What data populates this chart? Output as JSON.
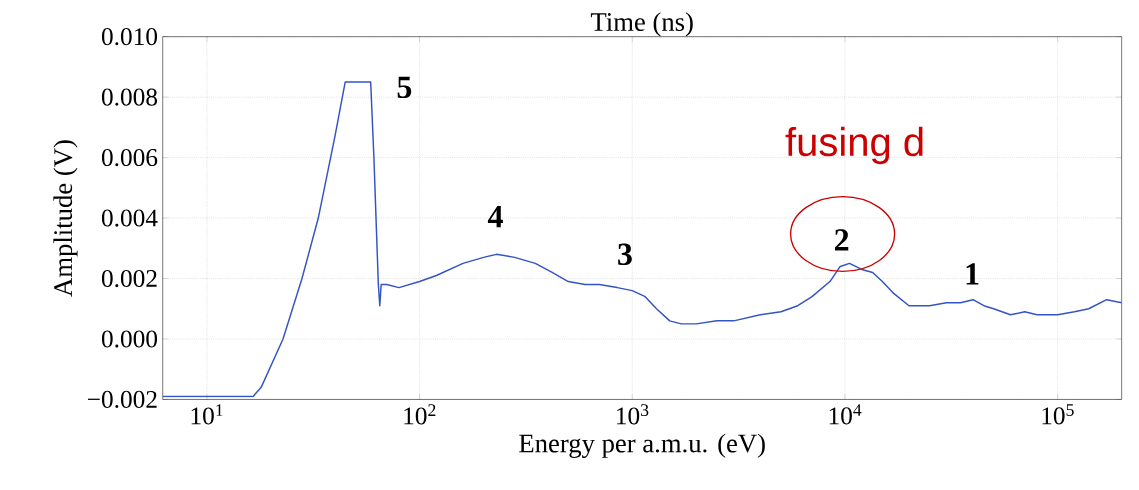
{
  "chart_data": {
    "type": "line",
    "xlabel": "Energy per a.m.u. (eV)",
    "ylabel": "Amplitude (V)",
    "x2label": "Time (ns)",
    "log": "x",
    "grid": true,
    "line_style": "solid",
    "marker": "none",
    "xlim": [
      6.2,
      200000
    ],
    "ylim": [
      -0.002,
      0.01
    ],
    "xticks": [
      {
        "value": 10,
        "label": "10$^{1}$"
      },
      {
        "value": 100,
        "label": "10$^{2}$"
      },
      {
        "value": 1000,
        "label": "10$^{3}$"
      },
      {
        "value": 10000,
        "label": "10$^{4}$"
      },
      {
        "value": 100000,
        "label": "10$^{5}$"
      }
    ],
    "yticks": [
      {
        "value": -0.002,
        "label": "−0.002"
      },
      {
        "value": 0.0,
        "label": "0.000"
      },
      {
        "value": 0.002,
        "label": "0.002"
      },
      {
        "value": 0.004,
        "label": "0.004"
      },
      {
        "value": 0.006,
        "label": "0.006"
      },
      {
        "value": 0.008,
        "label": "0.008"
      },
      {
        "value": 0.01,
        "label": "0.010"
      }
    ],
    "series": [
      {
        "color": "#3454c4",
        "x": [
          6.2,
          16.5,
          18,
          22.8,
          28,
          33.4,
          40,
          44.7,
          58.9,
          61,
          64,
          65,
          66,
          70,
          80,
          100,
          120,
          160,
          200,
          230,
          280,
          350,
          420,
          500,
          600,
          700,
          850,
          1000,
          1150,
          1300,
          1500,
          1700,
          2000,
          2500,
          3000,
          4000,
          5000,
          6000,
          7000,
          8500,
          9500,
          10500,
          12000,
          13500,
          15000,
          17000,
          20000,
          25000,
          30000,
          35000,
          40000,
          45000,
          50000,
          60000,
          70000,
          80000,
          100000,
          120000,
          140000,
          170000,
          200000
        ],
        "values": [
          -0.0019,
          -0.0019,
          -0.0016,
          0.0,
          0.002,
          0.004,
          0.0067,
          0.0085,
          0.0085,
          0.006,
          0.0018,
          0.0011,
          0.0018,
          0.0018,
          0.0017,
          0.0019,
          0.0021,
          0.0025,
          0.0027,
          0.0028,
          0.0027,
          0.0025,
          0.0022,
          0.0019,
          0.0018,
          0.0018,
          0.0017,
          0.0016,
          0.0014,
          0.001,
          0.0006,
          0.0005,
          0.0005,
          0.0006,
          0.0006,
          0.0008,
          0.0009,
          0.0011,
          0.0014,
          0.0019,
          0.0024,
          0.0025,
          0.0023,
          0.0022,
          0.0019,
          0.0015,
          0.0011,
          0.0011,
          0.0012,
          0.0012,
          0.0013,
          0.0011,
          0.001,
          0.0008,
          0.0009,
          0.0008,
          0.0008,
          0.0009,
          0.001,
          0.0013,
          0.0012
        ]
      }
    ],
    "annotations": [
      "5",
      "4",
      "3",
      "2",
      "1",
      "fusing d"
    ]
  }
}
